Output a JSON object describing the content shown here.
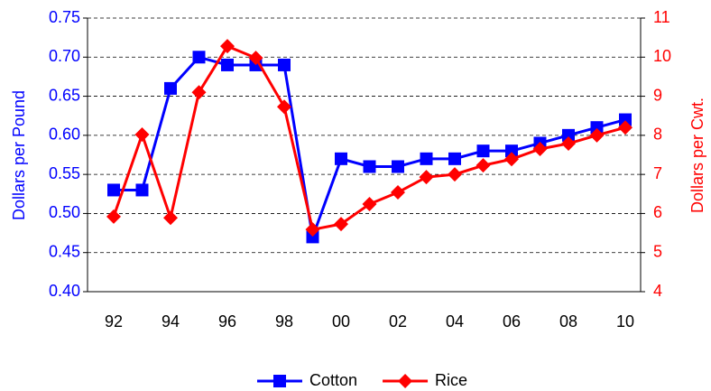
{
  "chart_data": {
    "type": "line",
    "categories": [
      "92",
      null,
      "94",
      null,
      "96",
      null,
      "98",
      null,
      "00",
      null,
      "02",
      null,
      "04",
      null,
      "06",
      null,
      "08",
      null,
      "10"
    ],
    "series": [
      {
        "name": "Cotton",
        "color": "#0000ff",
        "marker": "square",
        "values": [
          0.53,
          0.53,
          0.66,
          0.7,
          0.69,
          0.69,
          0.69,
          0.47,
          0.57,
          0.56,
          0.56,
          0.57,
          0.57,
          0.58,
          0.58,
          0.59,
          0.6,
          0.61,
          0.62
        ]
      },
      {
        "name": "Rice",
        "color": "#ff0000",
        "marker": "diamond",
        "axis": "y2",
        "values": [
          5.92,
          8.02,
          5.89,
          9.1,
          10.28,
          9.98,
          8.73,
          5.59,
          5.73,
          6.24,
          6.54,
          6.93,
          7.0,
          7.23,
          7.39,
          7.65,
          7.79,
          8.0,
          8.2
        ]
      }
    ],
    "ylabel": "Dollars per Pound",
    "y2label": "Dollars per Cwt.",
    "ylim": [
      0.4,
      0.75
    ],
    "yticks": [
      {
        "value": 0.4,
        "label": "0.40"
      },
      {
        "value": 0.45,
        "label": "0.45"
      },
      {
        "value": 0.5,
        "label": "0.50"
      },
      {
        "value": 0.55,
        "label": "0.55"
      },
      {
        "value": 0.6,
        "label": "0.60"
      },
      {
        "value": 0.65,
        "label": "0.65"
      },
      {
        "value": 0.7,
        "label": "0.70"
      },
      {
        "value": 0.75,
        "label": "0.75"
      }
    ],
    "y2lim": [
      4,
      11
    ],
    "y2ticks": [
      4,
      5,
      6,
      7,
      8,
      9,
      10,
      11
    ],
    "ycolor": "#0000ff",
    "y2color": "#ff0000",
    "grid": true,
    "legend": "bottom"
  }
}
